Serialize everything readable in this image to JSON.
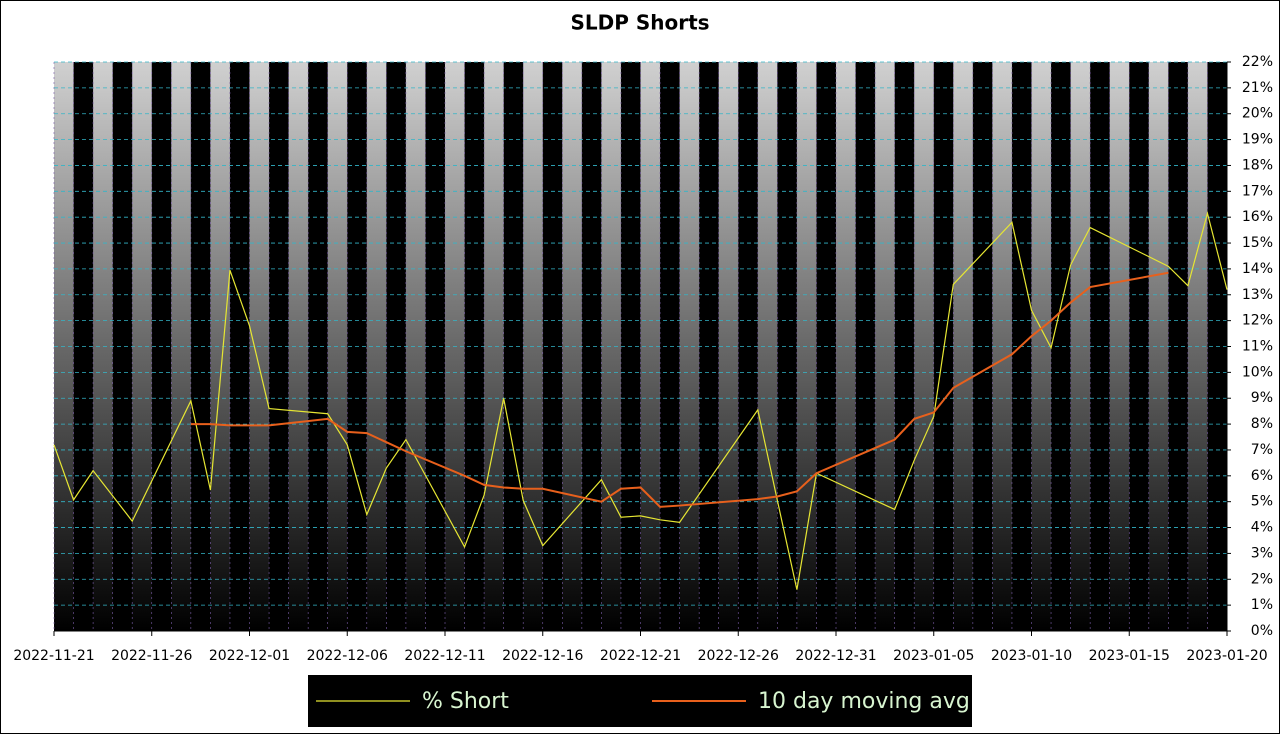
{
  "chart_data": {
    "type": "line",
    "title": "SLDP Shorts",
    "x": [
      "2022-11-21",
      "2022-11-22",
      "2022-11-23",
      "2022-11-25",
      "2022-11-28",
      "2022-11-29",
      "2022-11-30",
      "2022-12-01",
      "2022-12-02",
      "2022-12-05",
      "2022-12-06",
      "2022-12-07",
      "2022-12-08",
      "2022-12-09",
      "2022-12-12",
      "2022-12-13",
      "2022-12-14",
      "2022-12-15",
      "2022-12-16",
      "2022-12-19",
      "2022-12-20",
      "2022-12-21",
      "2022-12-22",
      "2022-12-23",
      "2022-12-27",
      "2022-12-28",
      "2022-12-29",
      "2022-12-30",
      "2023-01-03",
      "2023-01-04",
      "2023-01-05",
      "2023-01-06",
      "2023-01-09",
      "2023-01-10",
      "2023-01-11",
      "2023-01-12",
      "2023-01-13",
      "2023-01-17",
      "2023-01-18",
      "2023-01-19",
      "2023-01-20"
    ],
    "series": [
      {
        "name": "% Short",
        "color": "#e6e633",
        "values": [
          7.2,
          5.07,
          6.2,
          4.25,
          8.9,
          5.45,
          13.95,
          11.8,
          8.6,
          8.4,
          7.2,
          4.5,
          6.3,
          7.4,
          3.25,
          5.25,
          9.0,
          5.05,
          3.3,
          5.85,
          4.4,
          4.45,
          4.3,
          4.2,
          8.55,
          5.05,
          1.6,
          6.1,
          4.7,
          6.6,
          8.3,
          13.4,
          15.8,
          12.4,
          10.95,
          14.15,
          15.6,
          14.1,
          13.35,
          16.15,
          13.2
        ]
      },
      {
        "name": "10 day moving avg",
        "color": "#e8601c",
        "values": [
          null,
          null,
          null,
          null,
          8.0,
          8.0,
          7.95,
          7.95,
          7.95,
          8.2,
          7.7,
          7.65,
          7.3,
          6.95,
          6.0,
          5.65,
          5.55,
          5.5,
          5.5,
          5.0,
          5.5,
          5.55,
          4.8,
          4.85,
          5.1,
          5.2,
          5.4,
          6.1,
          7.4,
          8.2,
          8.45,
          9.4,
          10.7,
          11.4,
          12.0,
          12.7,
          13.3,
          13.85,
          null,
          null,
          null
        ]
      }
    ],
    "xlim": [
      "2022-11-21",
      "2023-01-20"
    ],
    "xticks": [
      "2022-11-21",
      "2022-11-26",
      "2022-12-01",
      "2022-12-06",
      "2022-12-11",
      "2022-12-16",
      "2022-12-21",
      "2022-12-26",
      "2022-12-31",
      "2023-01-05",
      "2023-01-10",
      "2023-01-15",
      "2023-01-20"
    ],
    "ylim": [
      0,
      22
    ],
    "yticks": [
      {
        "value": 0,
        "label": "0%"
      },
      {
        "value": 1,
        "label": "1%"
      },
      {
        "value": 2,
        "label": "2%"
      },
      {
        "value": 3,
        "label": "3%"
      },
      {
        "value": 4,
        "label": "4%"
      },
      {
        "value": 5,
        "label": "5%"
      },
      {
        "value": 6,
        "label": "6%"
      },
      {
        "value": 7,
        "label": "7%"
      },
      {
        "value": 8,
        "label": "8%"
      },
      {
        "value": 9,
        "label": "9%"
      },
      {
        "value": 10,
        "label": "10%"
      },
      {
        "value": 11,
        "label": "11%"
      },
      {
        "value": 12,
        "label": "12%"
      },
      {
        "value": 13,
        "label": "13%"
      },
      {
        "value": 14,
        "label": "14%"
      },
      {
        "value": 15,
        "label": "15%"
      },
      {
        "value": 16,
        "label": "16%"
      },
      {
        "value": 17,
        "label": "17%"
      },
      {
        "value": 18,
        "label": "18%"
      },
      {
        "value": 19,
        "label": "19%"
      },
      {
        "value": 20,
        "label": "20%"
      },
      {
        "value": 21,
        "label": "21%"
      },
      {
        "value": 22,
        "label": "22%"
      }
    ],
    "grid": true,
    "legend": "bottom"
  }
}
